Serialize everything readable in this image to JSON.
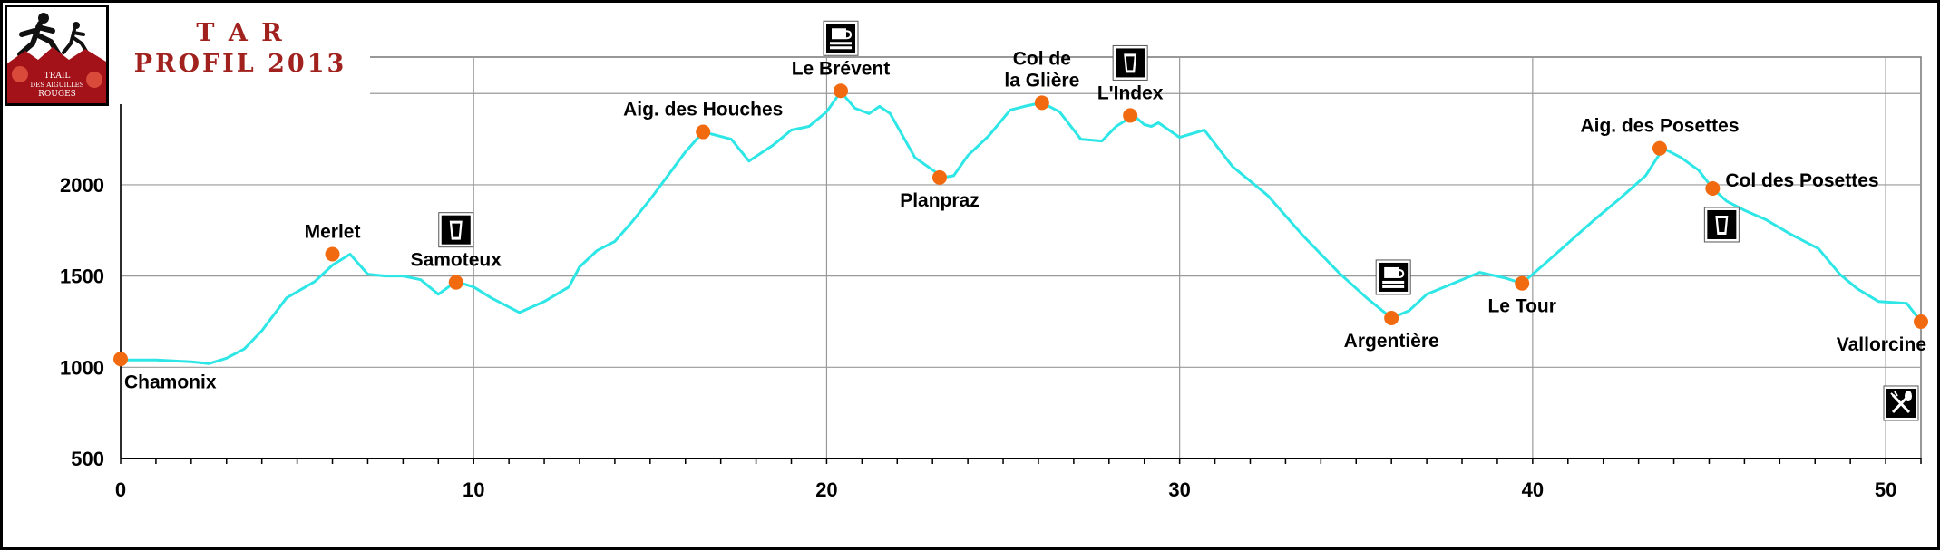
{
  "title": {
    "line1": "T A R",
    "line2": "PROFIL 2013"
  },
  "logo": {
    "text": "TRAIL DES AIGUILLES ROUGES"
  },
  "colors": {
    "profile": "#2ee6e6",
    "marker": "#f26a0f",
    "grid": "#999999",
    "title": "#a0211d",
    "logo_bg": "#a21218"
  },
  "chart_data": {
    "type": "line",
    "title": "",
    "xlabel": "",
    "ylabel": "",
    "xlim": [
      0,
      51
    ],
    "ylim": [
      500,
      2700
    ],
    "x_ticks": [
      0,
      10,
      20,
      30,
      40,
      50
    ],
    "y_ticks": [
      500,
      1000,
      1500,
      2000,
      2500
    ],
    "grid": true,
    "series": [
      {
        "x": [
          0,
          0.5,
          1,
          2,
          2.5,
          3,
          3.5,
          4,
          4.7,
          5.5,
          6,
          6.5,
          7,
          7.5,
          8,
          8.5,
          9,
          9.5,
          10,
          10.5,
          11.3,
          12,
          12.7,
          13,
          13.5,
          14,
          14.5,
          15,
          15.5,
          16,
          16.5,
          17.3,
          17.8,
          18.5,
          19,
          19.5,
          20,
          20.4,
          20.8,
          21.2,
          21.5,
          21.8,
          22.5,
          23.3,
          23.6,
          24,
          24.6,
          25.2,
          25.6,
          26.1,
          26.6,
          27.2,
          27.8,
          28.2,
          28.7,
          29,
          29.2,
          29.4,
          30,
          30.7,
          31.5,
          32.5,
          33.5,
          34.5,
          35.3,
          36,
          36.5,
          37,
          37.5,
          38.5,
          39.2,
          39.7,
          40.3,
          41,
          41.7,
          42.5,
          43.2,
          43.7,
          44.2,
          44.7,
          45.1,
          45.5,
          46,
          46.6,
          47.3,
          48.1,
          48.7,
          49.2,
          49.8,
          50.6,
          51
        ],
        "y": [
          1040,
          1040,
          1040,
          1030,
          1020,
          1050,
          1100,
          1200,
          1380,
          1470,
          1560,
          1620,
          1510,
          1500,
          1500,
          1480,
          1400,
          1470,
          1440,
          1380,
          1300,
          1360,
          1440,
          1550,
          1640,
          1690,
          1800,
          1920,
          2050,
          2180,
          2290,
          2250,
          2130,
          2220,
          2300,
          2320,
          2400,
          2510,
          2420,
          2390,
          2430,
          2390,
          2150,
          2040,
          2050,
          2160,
          2270,
          2410,
          2430,
          2450,
          2400,
          2250,
          2240,
          2320,
          2380,
          2330,
          2320,
          2340,
          2260,
          2300,
          2100,
          1940,
          1720,
          1520,
          1380,
          1270,
          1310,
          1400,
          1440,
          1520,
          1490,
          1460,
          1560,
          1680,
          1800,
          1930,
          2050,
          2200,
          2150,
          2080,
          1980,
          1910,
          1860,
          1810,
          1730,
          1650,
          1510,
          1430,
          1360,
          1350,
          1250
        ]
      }
    ],
    "points": [
      {
        "x": 0,
        "y": 1045,
        "label": "Chamonix",
        "pos": "below-right"
      },
      {
        "x": 6,
        "y": 1620,
        "label": "Merlet",
        "pos": "above"
      },
      {
        "x": 9.5,
        "y": 1465,
        "label": "Samoteux",
        "pos": "above",
        "icon": "drink"
      },
      {
        "x": 16.5,
        "y": 2290,
        "label": "Aig. des Houches",
        "pos": "above"
      },
      {
        "x": 20.4,
        "y": 2515,
        "label": "Le Brévent",
        "pos": "above",
        "icon": "food"
      },
      {
        "x": 23.2,
        "y": 2040,
        "label": "Planpraz",
        "pos": "below"
      },
      {
        "x": 26.1,
        "y": 2450,
        "label": "Col de la Glière",
        "lines": [
          "Col de",
          "la Glière"
        ],
        "pos": "above"
      },
      {
        "x": 28.6,
        "y": 2380,
        "label": "L'Index",
        "pos": "above",
        "icon": "drink"
      },
      {
        "x": 36.0,
        "y": 1270,
        "label": "Argentière",
        "pos": "below",
        "icon": "food"
      },
      {
        "x": 39.7,
        "y": 1460,
        "label": "Le Tour",
        "pos": "below"
      },
      {
        "x": 43.6,
        "y": 2200,
        "label": "Aig. des Posettes",
        "pos": "above"
      },
      {
        "x": 45.1,
        "y": 1980,
        "label": "Col des Posettes",
        "pos": "right",
        "icon": "drink"
      },
      {
        "x": 51,
        "y": 1250,
        "label": "Vallorcine",
        "pos": "below-left",
        "icon": "meal"
      }
    ]
  }
}
